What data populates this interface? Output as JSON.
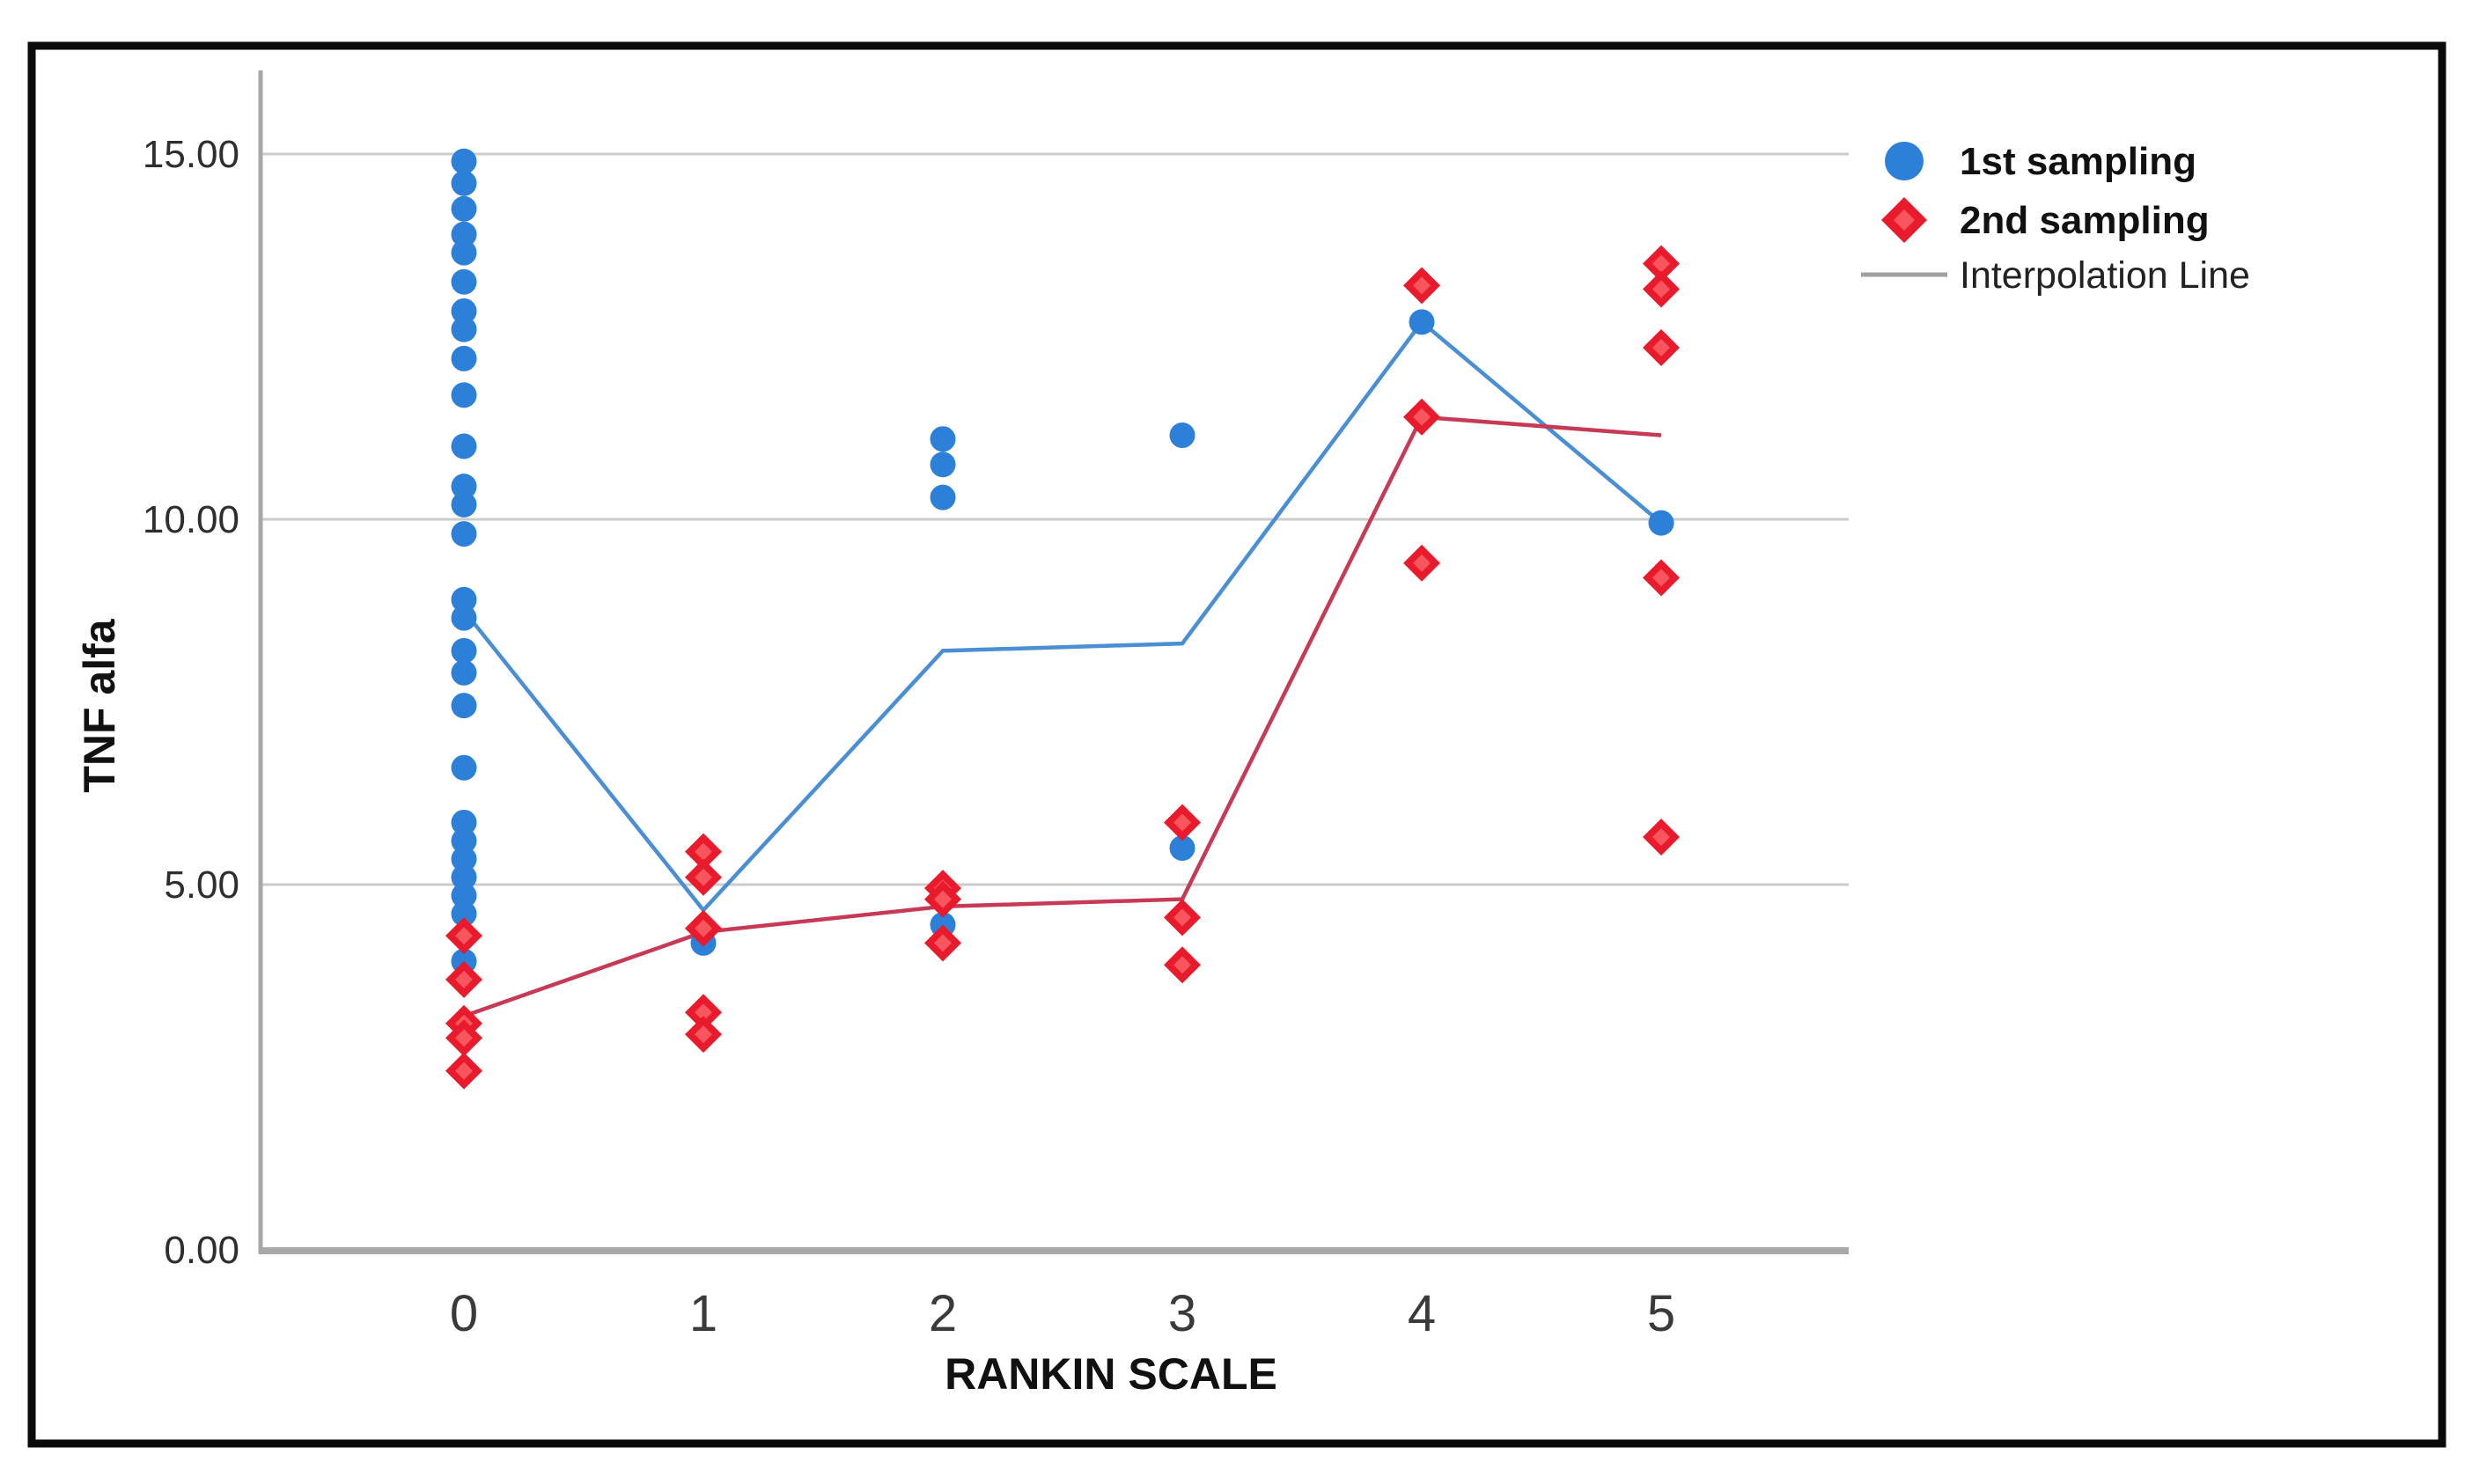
{
  "figure": {
    "border_color": "#0a0a0a",
    "background": "#ffffff"
  },
  "chart_data": {
    "type": "scatter",
    "title": "",
    "xlabel": "RANKIN SCALE",
    "ylabel": "TNF alfa",
    "xlim": [
      -0.85,
      5.78
    ],
    "ylim": [
      0,
      16.1
    ],
    "grid": "horizontal",
    "x_ticks": [
      {
        "label": "0",
        "value": 0
      },
      {
        "label": "1",
        "value": 1
      },
      {
        "label": "2",
        "value": 2
      },
      {
        "label": "3",
        "value": 3
      },
      {
        "label": "4",
        "value": 4
      },
      {
        "label": "5",
        "value": 5
      }
    ],
    "y_ticks": [
      {
        "label": "0.00",
        "value": 0
      },
      {
        "label": "5.00",
        "value": 5
      },
      {
        "label": "10.00",
        "value": 10
      },
      {
        "label": "15.00",
        "value": 15
      }
    ],
    "series": [
      {
        "name": "1st sampling",
        "marker": "circle",
        "color": "#2c80d8",
        "points": [
          [
            0,
            14.9
          ],
          [
            0,
            14.6
          ],
          [
            0,
            14.25
          ],
          [
            0,
            13.9
          ],
          [
            0,
            13.65
          ],
          [
            0,
            13.25
          ],
          [
            0,
            12.85
          ],
          [
            0,
            12.6
          ],
          [
            0,
            12.2
          ],
          [
            0,
            11.7
          ],
          [
            0,
            11.0
          ],
          [
            0,
            10.45
          ],
          [
            0,
            10.2
          ],
          [
            0,
            9.8
          ],
          [
            0,
            8.9
          ],
          [
            0,
            8.65
          ],
          [
            0,
            8.2
          ],
          [
            0,
            7.9
          ],
          [
            0,
            7.45
          ],
          [
            0,
            6.6
          ],
          [
            0,
            5.85
          ],
          [
            0,
            5.6
          ],
          [
            0,
            5.35
          ],
          [
            0,
            5.1
          ],
          [
            0,
            4.85
          ],
          [
            0,
            4.6
          ],
          [
            0,
            3.95
          ],
          [
            1,
            4.2
          ],
          [
            2,
            11.1
          ],
          [
            2,
            10.75
          ],
          [
            2,
            10.3
          ],
          [
            2,
            4.45
          ],
          [
            3,
            11.15
          ],
          [
            3,
            5.5
          ],
          [
            4,
            12.7
          ],
          [
            5,
            9.95
          ]
        ]
      },
      {
        "name": "2nd sampling",
        "marker": "diamond",
        "color": "#e91a2b",
        "inner_color": "#f7565f",
        "points": [
          [
            0,
            4.3
          ],
          [
            0,
            3.7
          ],
          [
            0,
            3.1
          ],
          [
            0,
            2.9
          ],
          [
            0,
            2.45
          ],
          [
            1,
            5.45
          ],
          [
            1,
            5.1
          ],
          [
            1,
            4.4
          ],
          [
            1,
            3.25
          ],
          [
            1,
            2.95
          ],
          [
            2,
            4.95
          ],
          [
            2,
            4.8
          ],
          [
            2,
            4.2
          ],
          [
            3,
            5.85
          ],
          [
            3,
            4.55
          ],
          [
            3,
            3.9
          ],
          [
            4,
            13.2
          ],
          [
            4,
            11.4
          ],
          [
            4,
            9.4
          ],
          [
            5,
            13.5
          ],
          [
            5,
            13.15
          ],
          [
            5,
            12.35
          ],
          [
            5,
            9.2
          ],
          [
            5,
            5.65
          ]
        ]
      }
    ],
    "interpolation_lines": [
      {
        "series": "1st sampling",
        "color": "#4a8ed3",
        "points": [
          [
            0,
            8.75
          ],
          [
            1,
            4.65
          ],
          [
            2,
            8.2
          ],
          [
            3,
            8.3
          ],
          [
            4,
            12.7
          ],
          [
            5,
            9.95
          ]
        ]
      },
      {
        "series": "2nd sampling",
        "color": "#c63a55",
        "points": [
          [
            0,
            3.2
          ],
          [
            1,
            4.35
          ],
          [
            2,
            4.7
          ],
          [
            3,
            4.8
          ],
          [
            4,
            11.4
          ],
          [
            5,
            11.15
          ]
        ]
      }
    ],
    "legend": {
      "position": "top-right",
      "line_swatch_color": "#a0a0a0",
      "entries": [
        {
          "label": "1st sampling",
          "marker": "circle",
          "bold": true
        },
        {
          "label": "2nd sampling",
          "marker": "diamond",
          "bold": true
        },
        {
          "label": "Interpolation Line",
          "marker": "line",
          "bold": false
        }
      ]
    }
  }
}
